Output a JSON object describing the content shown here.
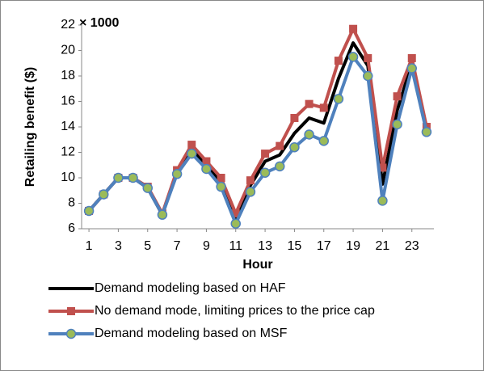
{
  "chart_data": {
    "type": "line",
    "y_label": "Retailing benefit ($)",
    "x_label": "Hour",
    "annotation": "× 1000",
    "x": [
      1,
      2,
      3,
      4,
      5,
      6,
      7,
      8,
      9,
      10,
      11,
      12,
      13,
      14,
      15,
      16,
      17,
      18,
      19,
      20,
      21,
      22,
      23,
      24
    ],
    "xlim": [
      0.5,
      24.5
    ],
    "xticks": [
      1,
      3,
      5,
      7,
      9,
      11,
      13,
      15,
      17,
      19,
      21,
      23
    ],
    "ylim": [
      6,
      22
    ],
    "yticks": [
      6,
      8,
      10,
      12,
      14,
      16,
      18,
      20,
      22
    ],
    "grid": false,
    "legend": "bottom",
    "series": [
      {
        "name": "Demand modeling based on HAF",
        "color": "#000000",
        "marker": "none",
        "values": [
          7.4,
          8.7,
          10.0,
          10.0,
          9.2,
          7.1,
          10.5,
          12.3,
          11.0,
          9.7,
          6.8,
          9.4,
          11.3,
          11.8,
          13.5,
          14.7,
          14.3,
          17.8,
          20.6,
          18.8,
          9.5,
          15.3,
          19.0,
          13.8
        ]
      },
      {
        "name": "No demand mode, limiting prices to the price cap",
        "color": "#c0504d",
        "marker": "square",
        "values": [
          7.4,
          8.7,
          10.0,
          10.0,
          9.3,
          7.2,
          10.6,
          12.6,
          11.3,
          10.0,
          7.2,
          9.8,
          11.9,
          12.5,
          14.7,
          15.8,
          15.5,
          19.2,
          21.7,
          19.4,
          10.8,
          16.4,
          19.4,
          14.0
        ]
      },
      {
        "name": "Demand modeling based on MSF",
        "color": "#4f81bd",
        "marker": "circle",
        "values": [
          7.4,
          8.7,
          10.0,
          10.0,
          9.2,
          7.1,
          10.3,
          11.9,
          10.7,
          9.3,
          6.4,
          8.9,
          10.4,
          10.9,
          12.4,
          13.4,
          12.9,
          16.2,
          19.5,
          18.0,
          8.2,
          14.2,
          18.6,
          13.6
        ]
      }
    ]
  }
}
